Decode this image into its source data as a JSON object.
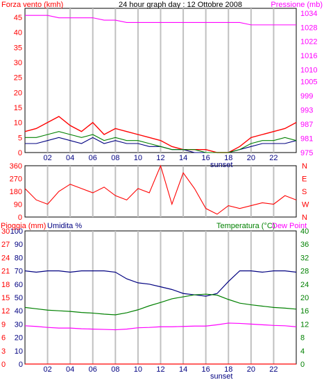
{
  "colors": {
    "wind": "#ff0000",
    "wind_avg": "#000080",
    "gust": "#008000",
    "pressure": "#ff00ff",
    "direction": "#ff0000",
    "rain": "#ff0000",
    "humidity": "#000080",
    "temperature": "#008000",
    "dew_point": "#ff00ff",
    "grid_hour": "#c0c0c0"
  },
  "header": {
    "left_label": "Forza vento (kmh)",
    "title": "24 hour graph day : 12 Ottobre 2008",
    "right_label": "Pressione (mb)"
  },
  "bottom_header": {
    "rain_label": "Pioggia (mm)",
    "humidity_label": "Umidita %",
    "temp_label": "Temperatura (°C)",
    "dew_label": "Dew Point"
  },
  "hour_labels": [
    "02",
    "04",
    "06",
    "08",
    "10",
    "12",
    "14",
    "16",
    "18",
    "20",
    "22"
  ],
  "sunset_label": "sunset",
  "chart_data": [
    {
      "type": "line",
      "panel": "wind_pressure",
      "x": [
        0,
        1,
        2,
        3,
        4,
        5,
        6,
        7,
        8,
        9,
        10,
        11,
        12,
        13,
        14,
        15,
        16,
        17,
        18,
        19,
        20,
        21,
        22,
        23,
        24
      ],
      "left_axis": {
        "label": "Forza vento (kmh)",
        "ticks": [
          0,
          5,
          10,
          15,
          20,
          25,
          30,
          35,
          40,
          45
        ],
        "ylim": [
          0,
          48
        ]
      },
      "right_axis": {
        "label": "Pressione (mb)",
        "ticks": [
          975,
          981,
          987,
          993,
          999,
          1005,
          1010,
          1016,
          1022,
          1028,
          1034
        ],
        "ylim": [
          975,
          1036
        ]
      },
      "series": [
        {
          "axis": "left",
          "values": [
            7,
            8,
            10,
            12,
            9,
            7,
            10,
            6,
            8,
            7,
            6,
            5,
            4,
            2,
            1,
            1,
            1,
            0,
            0,
            2,
            5,
            6,
            7,
            8,
            10
          ]
        },
        {
          "axis": "left",
          "values": [
            3,
            3,
            4,
            5,
            4,
            3,
            5,
            3,
            4,
            3,
            3,
            2,
            2,
            1,
            1,
            0,
            0,
            0,
            0,
            1,
            2,
            3,
            3,
            3,
            4
          ]
        },
        {
          "axis": "left",
          "values": [
            5,
            5,
            6,
            7,
            6,
            5,
            6,
            4,
            5,
            4,
            4,
            3,
            2,
            1,
            1,
            1,
            0,
            0,
            0,
            1,
            3,
            4,
            4,
            5,
            4
          ]
        },
        {
          "axis": "right",
          "values": [
            1033,
            1033,
            1033,
            1032,
            1032,
            1032,
            1032,
            1031,
            1031,
            1030,
            1030,
            1030,
            1030,
            1030,
            1030,
            1030,
            1030,
            1030,
            1030,
            1030,
            1029,
            1029,
            1029,
            1029,
            1029
          ]
        }
      ]
    },
    {
      "type": "scatter",
      "panel": "direction",
      "left_axis": {
        "ticks": [
          0,
          90,
          180,
          270,
          360
        ],
        "ylim": [
          0,
          360
        ]
      },
      "right_axis": {
        "ticks": [
          "N",
          "W",
          "S",
          "E",
          "N"
        ]
      },
      "x": [
        0,
        1,
        2,
        3,
        4,
        5,
        6,
        7,
        8,
        9,
        10,
        11,
        12,
        13,
        14,
        15,
        16,
        17,
        18,
        19,
        20,
        21,
        22,
        23,
        24
      ],
      "series": [
        {
          "values": [
            200,
            120,
            90,
            180,
            230,
            200,
            170,
            210,
            150,
            120,
            200,
            170,
            360,
            90,
            310,
            200,
            60,
            20,
            80,
            60,
            80,
            100,
            90,
            150,
            120
          ]
        }
      ]
    },
    {
      "type": "line",
      "panel": "rain_hum_temp",
      "x": [
        0,
        1,
        2,
        3,
        4,
        5,
        6,
        7,
        8,
        9,
        10,
        11,
        12,
        13,
        14,
        15,
        16,
        17,
        18,
        19,
        20,
        21,
        22,
        23,
        24
      ],
      "left_axis": {
        "rain_ticks": [
          0,
          3,
          6,
          9,
          12,
          15,
          18,
          21,
          24,
          27,
          30
        ],
        "humidity_ticks": [
          0,
          10,
          20,
          30,
          40,
          50,
          60,
          70,
          80,
          90,
          100
        ],
        "ylim_humidity": [
          0,
          100
        ]
      },
      "right_axis": {
        "ticks": [
          0,
          4,
          8,
          12,
          16,
          20,
          24,
          28,
          32,
          36,
          40
        ],
        "ylim": [
          0,
          40
        ]
      },
      "series": [
        {
          "axis": "left_rain",
          "values": [
            0,
            0,
            0,
            0,
            0,
            0,
            0,
            0,
            0,
            0,
            0,
            0,
            0,
            0,
            0,
            0,
            0,
            0,
            0,
            0,
            0,
            0,
            0,
            0,
            0
          ]
        },
        {
          "axis": "left_humidity",
          "values": [
            70,
            69,
            70,
            70,
            69,
            70,
            70,
            70,
            69,
            64,
            61,
            60,
            58,
            56,
            53,
            52,
            51,
            53,
            62,
            70,
            70,
            69,
            70,
            70,
            69
          ]
        },
        {
          "axis": "right",
          "values": [
            17,
            16.6,
            16.2,
            16,
            15.8,
            15.5,
            15.3,
            15,
            14.8,
            15.4,
            16.3,
            17.5,
            18.5,
            19.6,
            20.2,
            20.8,
            21,
            20.7,
            19.4,
            18.3,
            17.8,
            17.4,
            17,
            16.8,
            16.5
          ]
        },
        {
          "axis": "right",
          "values": [
            11.5,
            11.3,
            11,
            10.8,
            10.8,
            10.6,
            10.5,
            10.4,
            10.3,
            10.5,
            10.9,
            11,
            11.2,
            11.2,
            11.3,
            11.4,
            11.4,
            11.8,
            12.3,
            12.2,
            12,
            11.8,
            11.6,
            11.5,
            11.2
          ]
        }
      ]
    }
  ]
}
